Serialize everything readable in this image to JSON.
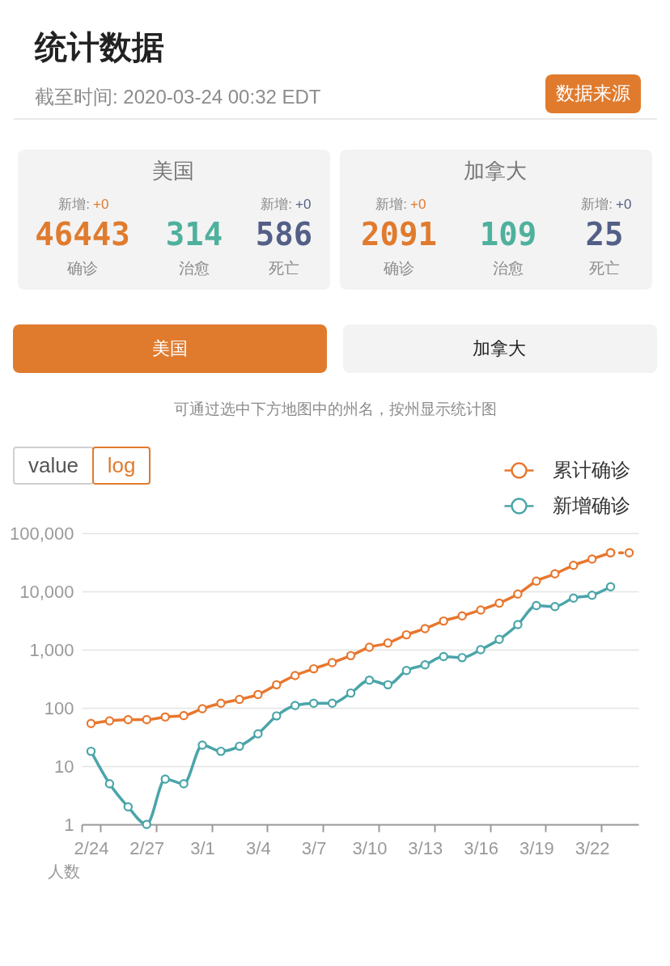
{
  "chart_data": [
    {
      "type": "other",
      "title": "统计数据",
      "subtitle": "截至时间: 2020-03-24 00:32 EDT",
      "annotations": [
        "数据来源",
        "美国",
        "新增:",
        "+0",
        "46443",
        "确诊",
        "314",
        "治愈",
        "新增:",
        "+0",
        "586",
        "死亡",
        "加拿大",
        "新增:",
        "+0",
        "2091",
        "确诊",
        "109",
        "治愈",
        "新增:",
        "+0",
        "25",
        "死亡",
        "美国",
        "加拿大",
        "可通过选中下方地图中的州名，按州显示统计图"
      ]
    },
    {
      "type": "line",
      "categories": [
        "2/24",
        null,
        null,
        "2/27",
        null,
        null,
        "3/1",
        null,
        null,
        "3/4",
        null,
        null,
        "3/7",
        null,
        null,
        "3/10",
        null,
        null,
        "3/13",
        null,
        null,
        "3/16",
        null,
        null,
        "3/19",
        null,
        null,
        "3/22",
        null,
        null
      ],
      "ylabel": "人数",
      "log": true,
      "ylim": [
        1,
        100000
      ],
      "yticks": [
        1,
        10,
        100,
        {
          "value": 1000,
          "label": "1,000"
        },
        {
          "value": 10000,
          "label": "10,000"
        },
        {
          "value": 100000,
          "label": "100,000"
        }
      ],
      "grid": "y",
      "legend": "top right",
      "marker": "circle",
      "line_style": "solid",
      "series": [
        {
          "name": "累计确诊",
          "color": "#e8772e",
          "values": [
            54,
            60,
            63,
            63,
            70,
            74,
            97,
            120,
            140,
            170,
            250,
            360,
            470,
            600,
            790,
            1100,
            1300,
            1800,
            2300,
            3100,
            3800,
            4800,
            6300,
            9000,
            15000,
            20000,
            28000,
            36000,
            46000,
            null
          ]
        },
        {
          "name": "新增确诊",
          "color": "#4aa5a9",
          "values": [
            18,
            5,
            2,
            1,
            6,
            5,
            23,
            18,
            22,
            36,
            73,
            110,
            120,
            120,
            180,
            300,
            250,
            440,
            550,
            760,
            730,
            1000,
            1500,
            2700,
            5700,
            5500,
            7700,
            8600,
            12000,
            null
          ]
        },
        {
          "color": "#e8772e",
          "line_style": "dotted",
          "values": [
            null,
            null,
            null,
            null,
            null,
            null,
            null,
            null,
            null,
            null,
            null,
            null,
            null,
            null,
            null,
            null,
            null,
            null,
            null,
            null,
            null,
            null,
            null,
            null,
            null,
            null,
            null,
            null,
            46000,
            46000
          ]
        }
      ],
      "annotations": [
        "value",
        "log"
      ]
    }
  ]
}
